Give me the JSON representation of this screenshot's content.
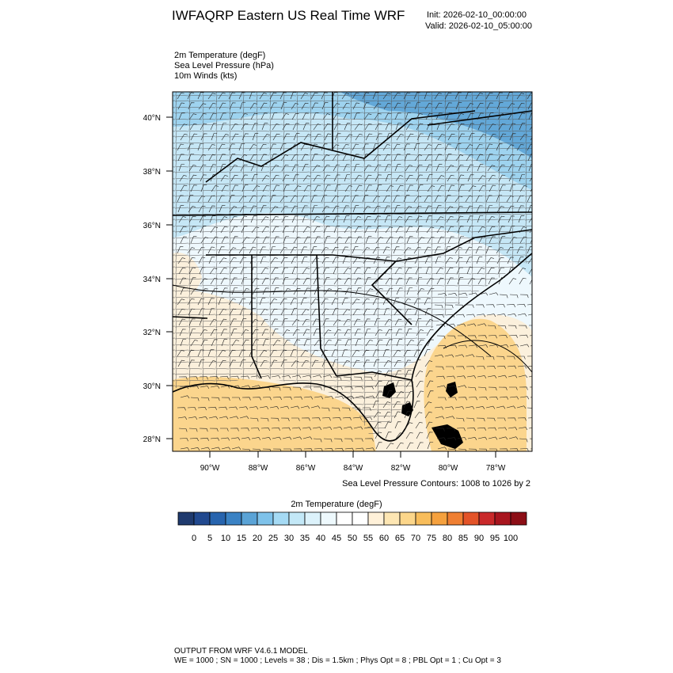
{
  "header": {
    "title": "IWFAQRP Eastern US Real Time WRF",
    "init": "Init: 2026-02-10_00:00:00",
    "valid": "Valid: 2026-02-10_05:00:00"
  },
  "fields": [
    "2m Temperature   (degF)",
    "Sea Level Pressure   (hPa)",
    "10m Winds   (kts)"
  ],
  "map": {
    "lat_labels": [
      "40°N",
      "38°N",
      "36°N",
      "34°N",
      "32°N",
      "30°N",
      "28°N"
    ],
    "lon_labels": [
      "90°W",
      "88°W",
      "86°W",
      "84°W",
      "82°W",
      "80°W",
      "78°W"
    ]
  },
  "slp_note": "Sea Level Pressure Contours: 1008 to 1026 by 2",
  "colorbar": {
    "title": "2m Temperature  (degF)",
    "labels": [
      "0",
      "5",
      "10",
      "15",
      "20",
      "25",
      "30",
      "35",
      "40",
      "45",
      "50",
      "55",
      "60",
      "65",
      "70",
      "75",
      "80",
      "85",
      "90",
      "95",
      "100"
    ],
    "colors": [
      "#1f3a6e",
      "#21498f",
      "#2764ae",
      "#3a82c4",
      "#5aa3d6",
      "#7ec2ea",
      "#a5daf4",
      "#c3e8f7",
      "#dcf2fb",
      "#eef9fd",
      "#ffffff",
      "#ffffff",
      "#fff1d9",
      "#fde6b3",
      "#fcd68a",
      "#f8bd5b",
      "#f5a13e",
      "#ef7f32",
      "#e35328",
      "#c9292a",
      "#a8151e",
      "#8c0e16"
    ]
  },
  "footer": {
    "line1": "OUTPUT FROM WRF V4.6.1 MODEL",
    "line2": "WE = 1000 ; SN = 1000 ; Levels = 38 ; Dis = 1.5km ; Phys Opt = 8 ; PBL Opt = 1 ; Cu Opt = 3"
  }
}
